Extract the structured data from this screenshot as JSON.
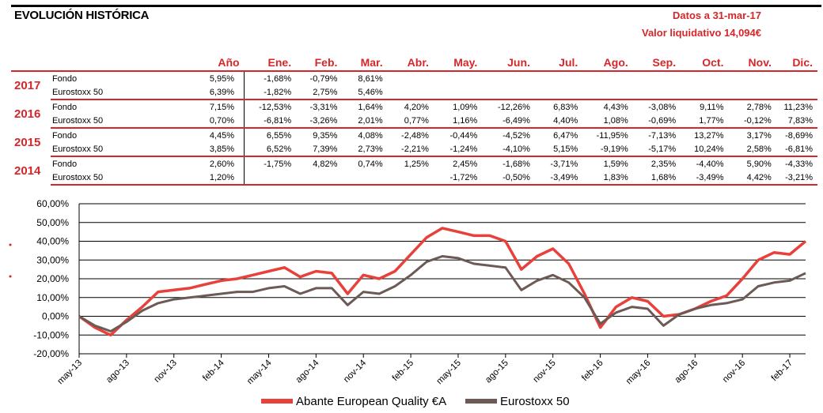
{
  "header": {
    "title": "EVOLUCIÓN HISTÓRICA",
    "date_line": "Datos a 31-mar-17",
    "nav_line": "Valor liquidativo 14,094€"
  },
  "table": {
    "columns": [
      "Año",
      "Ene.",
      "Feb.",
      "Mar.",
      "Abr.",
      "May.",
      "Jun.",
      "Jul.",
      "Ago.",
      "Sep.",
      "Oct.",
      "Nov.",
      "Dic."
    ],
    "years": [
      {
        "year": "2017",
        "rows": [
          {
            "label": "Fondo",
            "values": [
              "5,95%",
              "-1,68%",
              "-0,79%",
              "8,61%",
              "",
              "",
              "",
              "",
              "",
              "",
              "",
              "",
              ""
            ]
          },
          {
            "label": "Eurostoxx 50",
            "values": [
              "6,39%",
              "-1,82%",
              "2,75%",
              "5,46%",
              "",
              "",
              "",
              "",
              "",
              "",
              "",
              "",
              ""
            ]
          }
        ]
      },
      {
        "year": "2016",
        "rows": [
          {
            "label": "Fondo",
            "values": [
              "7,15%",
              "-12,53%",
              "-3,31%",
              "1,64%",
              "4,20%",
              "1,09%",
              "-12,26%",
              "6,83%",
              "4,43%",
              "-3,08%",
              "9,11%",
              "2,78%",
              "11,23%"
            ]
          },
          {
            "label": "Eurostoxx 50",
            "values": [
              "0,70%",
              "-6,81%",
              "-3,26%",
              "2,01%",
              "0,77%",
              "1,16%",
              "-6,49%",
              "4,40%",
              "1,08%",
              "-0,69%",
              "1,77%",
              "-0,12%",
              "7,83%"
            ]
          }
        ]
      },
      {
        "year": "2015",
        "rows": [
          {
            "label": "Fondo",
            "values": [
              "4,45%",
              "6,55%",
              "9,35%",
              "4,08%",
              "-2,48%",
              "-0,44%",
              "-4,52%",
              "6,47%",
              "-11,95%",
              "-7,13%",
              "13,27%",
              "3,17%",
              "-8,69%"
            ]
          },
          {
            "label": "Eurostoxx 50",
            "values": [
              "3,85%",
              "6,52%",
              "7,39%",
              "2,73%",
              "-2,21%",
              "-1,24%",
              "-4,10%",
              "5,15%",
              "-9,19%",
              "-5,17%",
              "10,24%",
              "2,58%",
              "-6,81%"
            ]
          }
        ]
      },
      {
        "year": "2014",
        "rows": [
          {
            "label": "Fondo",
            "values": [
              "2,60%",
              "-1,75%",
              "4,82%",
              "0,74%",
              "1,25%",
              "2,45%",
              "-1,68%",
              "-3,71%",
              "1,59%",
              "2,35%",
              "-4,40%",
              "5,90%",
              "-4,33%"
            ]
          },
          {
            "label": "Eurostoxx 50",
            "values": [
              "1,20%",
              "",
              "",
              "",
              "",
              "-1,72%",
              "-0,50%",
              "-3,49%",
              "1,83%",
              "1,68%",
              "-3,49%",
              "4,42%",
              "-3,21%"
            ]
          }
        ]
      }
    ]
  },
  "chart_data": {
    "type": "line",
    "x": [
      "may-13",
      "jun-13",
      "jul-13",
      "ago-13",
      "sep-13",
      "oct-13",
      "nov-13",
      "dic-13",
      "ene-14",
      "feb-14",
      "mar-14",
      "abr-14",
      "may-14",
      "jun-14",
      "jul-14",
      "ago-14",
      "sep-14",
      "oct-14",
      "nov-14",
      "dic-14",
      "ene-15",
      "feb-15",
      "mar-15",
      "abr-15",
      "may-15",
      "jun-15",
      "jul-15",
      "ago-15",
      "sep-15",
      "oct-15",
      "nov-15",
      "dic-15",
      "ene-16",
      "feb-16",
      "mar-16",
      "abr-16",
      "may-16",
      "jun-16",
      "jul-16",
      "ago-16",
      "sep-16",
      "oct-16",
      "nov-16",
      "dic-16",
      "ene-17",
      "feb-17",
      "mar-17"
    ],
    "x_tick_labels": [
      "may-13",
      "ago-13",
      "nov-13",
      "feb-14",
      "may-14",
      "ago-14",
      "nov-14",
      "feb-15",
      "may-15",
      "ago-15",
      "nov-15",
      "feb-16",
      "may-16",
      "ago-16",
      "nov-16",
      "feb-17"
    ],
    "series": [
      {
        "name": "Abante European Quality €A",
        "color": "#e8403a",
        "values": [
          0,
          -6,
          -10,
          -2,
          5,
          13,
          14,
          15,
          17,
          19,
          20,
          22,
          24,
          26,
          21,
          24,
          23,
          12,
          22,
          20,
          24,
          33,
          42,
          47,
          45,
          43,
          43,
          40,
          25,
          32,
          36,
          28,
          12,
          -6,
          5,
          10,
          8,
          0,
          1,
          4,
          8,
          11,
          20,
          30,
          34,
          33,
          40
        ]
      },
      {
        "name": "Eurostoxx 50",
        "color": "#6b5a55",
        "values": [
          0,
          -5,
          -8,
          -3,
          3,
          7,
          9,
          10,
          11,
          12,
          13,
          13,
          15,
          16,
          12,
          15,
          15,
          6,
          13,
          12,
          16,
          22,
          29,
          32,
          31,
          28,
          27,
          26,
          14,
          19,
          22,
          18,
          10,
          -4,
          2,
          5,
          4,
          -5,
          1,
          4,
          6,
          7,
          9,
          16,
          18,
          19,
          23
        ]
      }
    ],
    "y_ticks": [
      "60,00%",
      "50,00%",
      "40,00%",
      "30,00%",
      "20,00%",
      "10,00%",
      "0,00%",
      "-10,00%",
      "-20,00%"
    ],
    "ylim": [
      -20,
      60
    ],
    "grid": true,
    "legend": "bottom"
  }
}
